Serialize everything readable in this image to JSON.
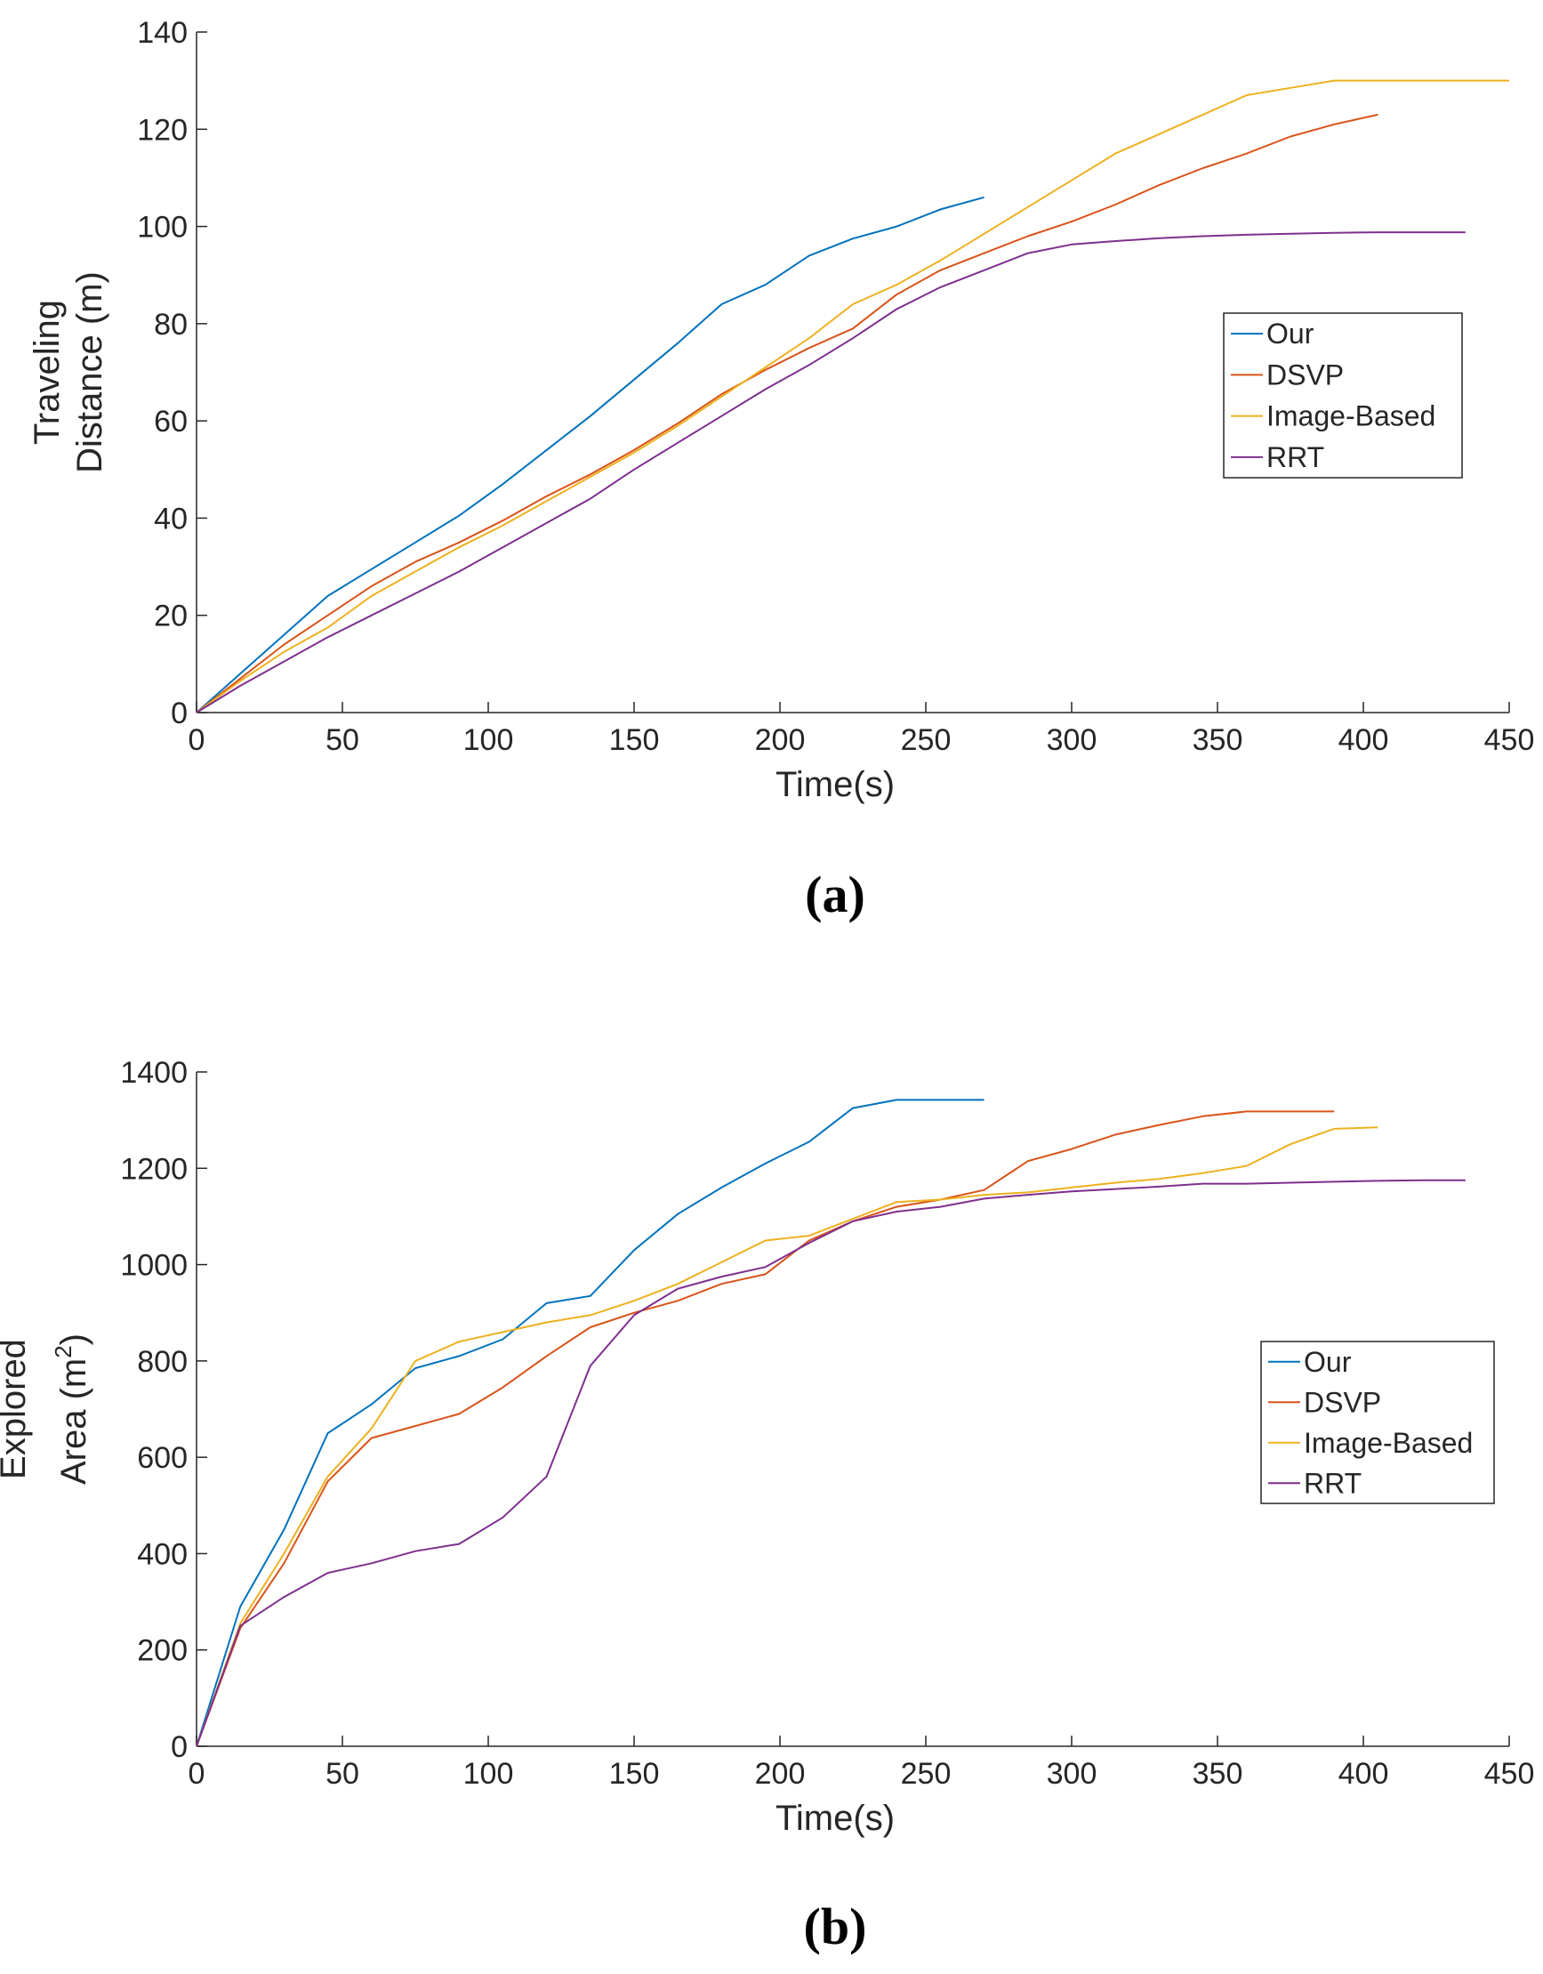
{
  "colors": {
    "Our": "#0072BD",
    "DSVP": "#D95319",
    "Image-Based": "#EDB120",
    "RRT": "#7E2F8E"
  },
  "chart_data": [
    {
      "type": "line",
      "panel_label": "(a)",
      "xlabel": "Time(s)",
      "ylabel_lines": [
        "Traveling",
        "Distance (m)"
      ],
      "xlim": [
        0,
        450
      ],
      "ylim": [
        0,
        140
      ],
      "xticks": [
        0,
        50,
        100,
        150,
        200,
        250,
        300,
        350,
        400,
        450
      ],
      "yticks": [
        0,
        20,
        40,
        60,
        80,
        100,
        120,
        140
      ],
      "legend_position": "right",
      "series": [
        {
          "name": "Our",
          "x": [
            0,
            15,
            30,
            45,
            60,
            75,
            90,
            105,
            120,
            135,
            150,
            165,
            180,
            195,
            210,
            225,
            240,
            255,
            270
          ],
          "y": [
            0,
            8,
            16,
            24,
            29.5,
            35,
            40.5,
            47,
            54,
            61,
            68.5,
            76,
            84,
            88,
            94,
            97.5,
            100,
            103.5,
            106
          ]
        },
        {
          "name": "DSVP",
          "x": [
            0,
            15,
            30,
            45,
            60,
            75,
            90,
            105,
            120,
            135,
            150,
            165,
            180,
            195,
            210,
            225,
            240,
            255,
            270,
            285,
            300,
            315,
            330,
            345,
            360,
            375,
            390,
            405
          ],
          "y": [
            0,
            7,
            14,
            20,
            26,
            31,
            35,
            39.5,
            44.5,
            49,
            54,
            59.5,
            65.5,
            70.5,
            75,
            79,
            86,
            91,
            94.5,
            98,
            101,
            104.5,
            108.5,
            112,
            115,
            118.5,
            121,
            123
          ]
        },
        {
          "name": "Image-Based",
          "x": [
            0,
            15,
            30,
            45,
            60,
            75,
            90,
            105,
            120,
            135,
            150,
            165,
            180,
            195,
            210,
            225,
            240,
            255,
            270,
            285,
            300,
            315,
            330,
            345,
            360,
            375,
            390,
            405,
            420,
            435,
            450
          ],
          "y": [
            0,
            6.5,
            12.5,
            17.5,
            24,
            29,
            34,
            38.5,
            43.5,
            48.5,
            53.5,
            59,
            65,
            71,
            77,
            84,
            88,
            93,
            98.5,
            104,
            109.5,
            115,
            119,
            123,
            127,
            128.5,
            130,
            130,
            130,
            130,
            130
          ]
        },
        {
          "name": "RRT",
          "x": [
            0,
            15,
            30,
            45,
            60,
            75,
            90,
            105,
            120,
            135,
            150,
            165,
            180,
            195,
            210,
            225,
            240,
            255,
            270,
            285,
            300,
            315,
            330,
            345,
            360,
            375,
            390,
            405,
            420,
            435
          ],
          "y": [
            0,
            5.5,
            10.5,
            15.5,
            20,
            24.5,
            29,
            34,
            39,
            44,
            50,
            55.5,
            61,
            66.5,
            71.5,
            77,
            83,
            87.5,
            91,
            94.5,
            96.3,
            97,
            97.6,
            98,
            98.3,
            98.5,
            98.7,
            98.8,
            98.8,
            98.8
          ]
        }
      ]
    },
    {
      "type": "line",
      "panel_label": "(b)",
      "xlabel": "Time(s)",
      "ylabel_lines": [
        "Explored",
        "Area (m",
        "2",
        ")"
      ],
      "xlim": [
        0,
        450
      ],
      "ylim": [
        0,
        1400
      ],
      "xticks": [
        0,
        50,
        100,
        150,
        200,
        250,
        300,
        350,
        400,
        450
      ],
      "yticks": [
        0,
        200,
        400,
        600,
        800,
        1000,
        1200,
        1400
      ],
      "legend_position": "right",
      "series": [
        {
          "name": "Our",
          "x": [
            0,
            15,
            30,
            45,
            60,
            75,
            90,
            105,
            120,
            135,
            150,
            165,
            180,
            195,
            210,
            225,
            240,
            255,
            270
          ],
          "y": [
            0,
            290,
            450,
            650,
            710,
            785,
            810,
            845,
            920,
            935,
            1030,
            1105,
            1160,
            1210,
            1255,
            1325,
            1342,
            1342,
            1342
          ]
        },
        {
          "name": "DSVP",
          "x": [
            0,
            15,
            30,
            45,
            60,
            75,
            90,
            105,
            120,
            135,
            150,
            165,
            180,
            195,
            210,
            225,
            240,
            255,
            270,
            285,
            300,
            315,
            330,
            345,
            360,
            375,
            390
          ],
          "y": [
            0,
            245,
            380,
            550,
            640,
            665,
            690,
            745,
            810,
            870,
            900,
            925,
            960,
            980,
            1050,
            1090,
            1120,
            1135,
            1155,
            1215,
            1240,
            1270,
            1290,
            1308,
            1318,
            1318,
            1318
          ]
        },
        {
          "name": "Image-Based",
          "x": [
            0,
            15,
            30,
            45,
            60,
            75,
            90,
            105,
            120,
            135,
            150,
            165,
            180,
            195,
            210,
            225,
            240,
            255,
            270,
            285,
            300,
            315,
            330,
            345,
            360,
            375,
            390,
            405
          ],
          "y": [
            0,
            255,
            400,
            560,
            660,
            800,
            840,
            860,
            880,
            895,
            925,
            960,
            1005,
            1050,
            1060,
            1095,
            1130,
            1135,
            1145,
            1150,
            1160,
            1170,
            1178,
            1190,
            1205,
            1250,
            1282,
            1285
          ]
        },
        {
          "name": "RRT",
          "x": [
            0,
            15,
            30,
            45,
            60,
            75,
            90,
            105,
            120,
            135,
            150,
            165,
            180,
            195,
            210,
            225,
            240,
            255,
            270,
            285,
            300,
            315,
            330,
            345,
            360,
            375,
            390,
            405,
            420,
            435
          ],
          "y": [
            0,
            250,
            310,
            360,
            380,
            405,
            420,
            475,
            560,
            790,
            895,
            950,
            975,
            995,
            1045,
            1090,
            1110,
            1120,
            1137,
            1145,
            1152,
            1157,
            1162,
            1168,
            1168,
            1170,
            1172,
            1174,
            1175,
            1175
          ]
        }
      ]
    }
  ]
}
